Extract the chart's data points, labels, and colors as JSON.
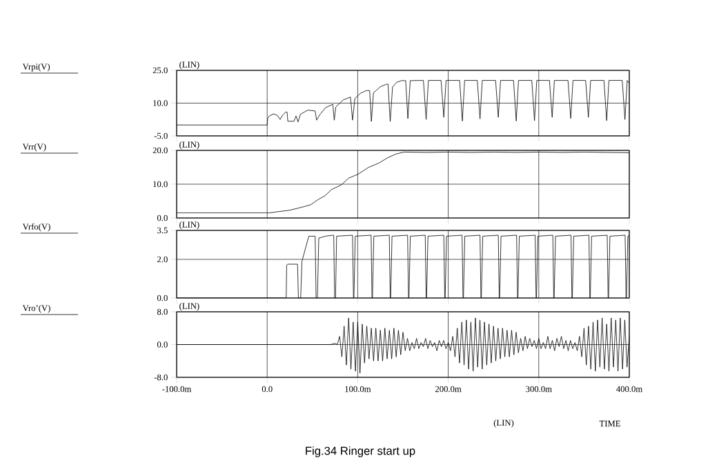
{
  "chart_data": [
    {
      "type": "line",
      "ylabel": "Vrpi(V)",
      "annotations": [
        "(LIN)"
      ],
      "xlim": [
        -100,
        400
      ],
      "ylim": [
        -5,
        25
      ],
      "grid": true,
      "tick_labels": "y",
      "marker": "none",
      "xticks": [
        -100,
        0,
        100,
        200,
        300,
        400
      ],
      "yticks": [
        {
          "value": -5,
          "label": "-5.0"
        },
        {
          "value": 10,
          "label": "10.0"
        },
        {
          "value": 25,
          "label": "25.0"
        }
      ],
      "series": [
        {
          "color": "#000000",
          "x": [
            -100,
            0,
            0.5,
            2.6,
            7.5,
            11.7,
            14.3,
            17,
            20.5,
            22,
            22.8,
            29.6,
            31.9,
            34.1,
            36.7,
            44.9,
            53,
            54.6,
            57.9,
            64.4,
            72.5,
            74.1,
            75.8,
            83.9,
            92,
            94.3,
            96.9,
            103,
            109.9,
            113.2,
            115.1,
            117.4,
            125,
            132,
            133.5,
            135.9,
            138.5,
            143,
            148.3,
            153,
            155.4,
            158,
            172.6,
            175.6,
            178.1,
            192.1,
            195.1,
            197.6,
            212.6,
            215.6,
            218.1,
            232.1,
            235.1,
            237.6,
            252.3,
            255.3,
            257.8,
            272.1,
            275.1,
            277.6,
            292.3,
            295.3,
            297.8,
            311.8,
            314.8,
            317.3,
            332.3,
            335.3,
            337.8,
            351.8,
            354.8,
            357.3,
            372,
            375,
            377.5,
            392.2,
            395.2,
            397.7,
            400
          ],
          "values": [
            0,
            0,
            3,
            4.2,
            5.1,
            4.2,
            2.5,
            4.5,
            5.9,
            5.9,
            1.7,
            1.7,
            4.1,
            1.4,
            4.9,
            6.8,
            6.4,
            2.2,
            4.6,
            7.9,
            9.5,
            2.2,
            8.2,
            11.4,
            12.8,
            2.2,
            12.1,
            14.5,
            15.8,
            15.7,
            1.6,
            14.7,
            17.5,
            18.7,
            18.7,
            1.6,
            17.4,
            19.5,
            20.3,
            20.3,
            2.9,
            20.3,
            20.4,
            2.5,
            20.4,
            20.4,
            3.5,
            20.4,
            20.4,
            1.8,
            20.4,
            20.4,
            2.8,
            20.4,
            20.4,
            3.5,
            20.4,
            20.4,
            1.8,
            20.4,
            20.4,
            2,
            20.4,
            20.4,
            3.5,
            20.4,
            20.4,
            3,
            20.4,
            20.4,
            3.5,
            20.4,
            20.4,
            2,
            20.4,
            20.4,
            2.5,
            20.4,
            19
          ]
        }
      ]
    },
    {
      "type": "line",
      "ylabel": "Vrr(V)",
      "annotations": [
        "(LIN)"
      ],
      "xlim": [
        -100,
        400
      ],
      "ylim": [
        0,
        20
      ],
      "grid": true,
      "tick_labels": "y",
      "marker": "none",
      "xticks": [
        -100,
        0,
        100,
        200,
        300,
        400
      ],
      "yticks": [
        {
          "value": 0,
          "label": "0.0"
        },
        {
          "value": 10,
          "label": "10.0"
        },
        {
          "value": 20,
          "label": "20.0"
        }
      ],
      "series": [
        {
          "color": "#000000",
          "x": [
            -100,
            0,
            3,
            10,
            25,
            40,
            48,
            56,
            64,
            71,
            82,
            90,
            100,
            111.5,
            123,
            133,
            142,
            151,
            175,
            200,
            225,
            250,
            275,
            300,
            325,
            350,
            375,
            400
          ],
          "values": [
            1.5,
            1.5,
            1.5,
            1.8,
            2.3,
            3.3,
            3.9,
            5.4,
            6.6,
            8.4,
            9.8,
            11.8,
            12.9,
            14.9,
            16.2,
            17.8,
            18.9,
            19.5,
            19.4,
            19.5,
            19.4,
            19.5,
            19.4,
            19.5,
            19.4,
            19.5,
            19.4,
            19.3
          ]
        }
      ]
    },
    {
      "type": "line",
      "ylabel": "Vrfo(V)",
      "annotations": [
        "(LIN)"
      ],
      "xlim": [
        -100,
        400
      ],
      "ylim": [
        0,
        3.5
      ],
      "grid": true,
      "tick_labels": "y",
      "marker": "none",
      "xticks": [
        -100,
        0,
        100,
        200,
        300,
        400
      ],
      "yticks": [
        {
          "value": 0,
          "label": "0.0"
        },
        {
          "value": 2,
          "label": "2.0"
        },
        3.5
      ],
      "series": [
        {
          "color": "#000000",
          "x": [
            -100,
            21,
            21.5,
            22.5,
            33.5,
            34.5,
            37,
            38.4,
            46,
            49.8,
            53,
            54,
            55.5,
            57,
            64.4,
            72.5,
            73.5,
            74.5,
            75.5,
            76.7,
            94.3,
            95.3,
            95.8,
            97.3,
            114.8,
            115.8,
            116.3,
            117.8,
            134.9,
            135.9,
            136.4,
            137.9,
            155.1,
            156.1,
            156.6,
            158.1,
            174.6,
            175.6,
            176.1,
            177.6,
            195.1,
            196.1,
            196.6,
            198.1,
            215.3,
            216.3,
            216.8,
            218.3,
            235.1,
            236.1,
            236.6,
            238.1,
            255.3,
            256.3,
            256.8,
            258.3,
            275.5,
            276.5,
            277,
            278.5,
            296,
            297,
            297.5,
            299,
            315.5,
            316.5,
            317,
            318.5,
            335.6,
            336.6,
            337.1,
            338.6,
            355.4,
            356.4,
            356.9,
            358.4,
            375.6,
            376.6,
            377.1,
            378.6,
            395.4,
            396.4,
            396.9,
            398.4,
            400
          ],
          "values": [
            0,
            0,
            1.7,
            1.75,
            1.75,
            0,
            0,
            1.9,
            3.2,
            3.2,
            3.2,
            0,
            0,
            3.1,
            3.2,
            3.25,
            3.25,
            0,
            0,
            3.2,
            3.25,
            0,
            0,
            3.2,
            3.25,
            0,
            0,
            3.2,
            3.25,
            0,
            0,
            3.2,
            3.25,
            0,
            0,
            3.2,
            3.25,
            0,
            0,
            3.2,
            3.25,
            0,
            0,
            3.2,
            3.25,
            0,
            0,
            3.2,
            3.25,
            0,
            0,
            3.2,
            3.25,
            0,
            0,
            3.2,
            3.25,
            0,
            0,
            3.2,
            3.25,
            0,
            0,
            3.2,
            3.25,
            0,
            0,
            3.2,
            3.25,
            0,
            0,
            3.2,
            3.25,
            0,
            0,
            3.2,
            3.25,
            0,
            0,
            3.2,
            3.25,
            0,
            0,
            3.2,
            3.25
          ]
        }
      ]
    },
    {
      "type": "line",
      "ylabel": "Vro’(V)",
      "xlabel": "TIME",
      "annotations": [
        "(LIN)",
        "(LIN)",
        "Fig.34  Ringer start up"
      ],
      "xlim": [
        -100,
        400
      ],
      "ylim": [
        -8,
        8
      ],
      "grid": true,
      "marker": "none",
      "xticks": [
        {
          "value": -100,
          "label": "-100.0m"
        },
        {
          "value": 0,
          "label": "0.0"
        },
        {
          "value": 100,
          "label": "100.0m"
        },
        {
          "value": 200,
          "label": "200.0m"
        },
        {
          "value": 300,
          "label": "300.0m"
        },
        {
          "value": 400,
          "label": "400.0m"
        }
      ],
      "yticks": [
        {
          "value": -8,
          "label": "-8.0"
        },
        {
          "value": 0,
          "label": "0.0"
        },
        {
          "value": 8,
          "label": "8.0"
        }
      ],
      "series": [
        {
          "color": "#000000",
          "x": [
            -100,
            70,
            75,
            77.5,
            80,
            82.5,
            85,
            87.5,
            90,
            92.5,
            95,
            97.5,
            100,
            102.5,
            105,
            107.5,
            110,
            112.5,
            115,
            117.5,
            120,
            122.5,
            125,
            127.5,
            130,
            132.5,
            135,
            137.5,
            140,
            142.5,
            145,
            147.5,
            150,
            152.5,
            155,
            157.5,
            160,
            162.5,
            165,
            167.5,
            170,
            172.5,
            175,
            177.5,
            180,
            182.5,
            185,
            187.5,
            190,
            192.5,
            195,
            197.5,
            200,
            202.5,
            205,
            207.5,
            210,
            212.5,
            215,
            217.5,
            220,
            222.5,
            225,
            227.5,
            230,
            232.5,
            235,
            237.5,
            240,
            242.5,
            245,
            247.5,
            250,
            252.5,
            255,
            257.5,
            260,
            262.5,
            265,
            267.5,
            270,
            272.5,
            275,
            277.5,
            280,
            282.5,
            285,
            287.5,
            290,
            292.5,
            295,
            297.5,
            300,
            302.5,
            305,
            307.5,
            310,
            312.5,
            315,
            317.5,
            320,
            322.5,
            325,
            327.5,
            330,
            332.5,
            335,
            337.5,
            340,
            342.5,
            345,
            347.5,
            350,
            352.5,
            355,
            357.5,
            360,
            362.5,
            365,
            367.5,
            370,
            372.5,
            375,
            377.5,
            380,
            382.5,
            385,
            387.5,
            390,
            392.5,
            395,
            397.5,
            400
          ],
          "values": [
            0,
            0,
            0.3,
            0,
            2,
            -3,
            4.5,
            -5,
            6.5,
            -6,
            5.5,
            -6.5,
            5.5,
            -7,
            5,
            -4.5,
            4.5,
            -3.5,
            4,
            -4,
            4,
            -4,
            3.5,
            -4,
            4,
            -3.5,
            3.5,
            -3.5,
            4,
            -3,
            3.5,
            -2.5,
            3,
            -1.5,
            1.5,
            -1.5,
            0.5,
            -1,
            1.5,
            -1,
            0.5,
            -0.5,
            1.5,
            -1,
            1,
            -0.5,
            0.5,
            -1.5,
            1,
            -0.5,
            1,
            -1,
            0.5,
            -1.5,
            2,
            -3,
            4,
            -4.5,
            5.5,
            -5,
            6,
            -6,
            5.5,
            -6.5,
            6.5,
            -5.5,
            6,
            -6,
            5.5,
            -5,
            5,
            -4.5,
            4.5,
            -4,
            4,
            -3.5,
            4,
            -3,
            3.5,
            -3,
            3.5,
            -2.5,
            3,
            -2,
            1.5,
            -1.5,
            2,
            -1,
            1.5,
            -0.5,
            1,
            -1,
            1.5,
            -1,
            0.5,
            -1,
            2,
            -1,
            1,
            -1.5,
            1.5,
            -0.5,
            2,
            -1,
            1,
            -1.5,
            1,
            -1,
            0.5,
            -1.5,
            2,
            -3,
            4,
            -5,
            4.5,
            -6,
            5.5,
            -6.5,
            6,
            -5.5,
            6.5,
            -6,
            5,
            -6.5,
            6.5,
            -5.5,
            6,
            -6.5,
            6.5,
            -6,
            6,
            -5.5,
            2
          ]
        }
      ]
    }
  ]
}
